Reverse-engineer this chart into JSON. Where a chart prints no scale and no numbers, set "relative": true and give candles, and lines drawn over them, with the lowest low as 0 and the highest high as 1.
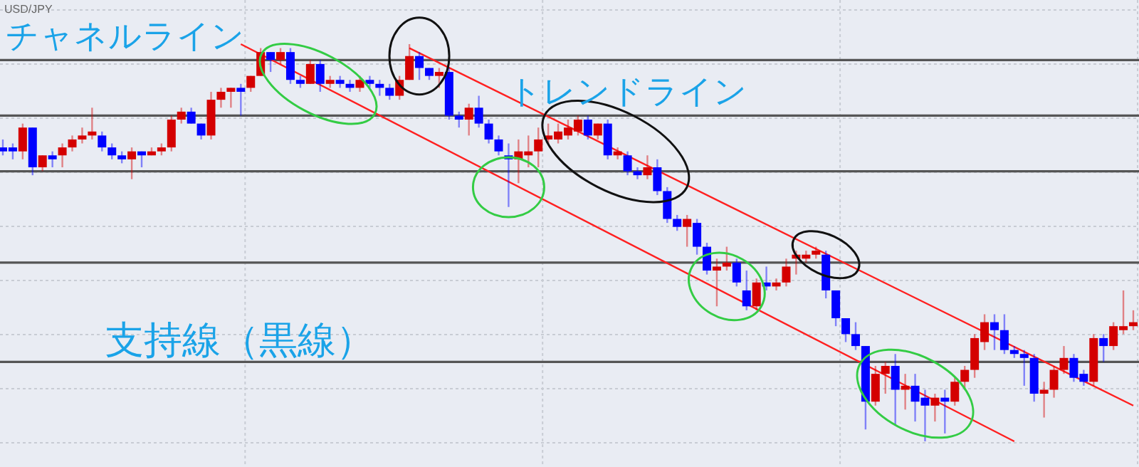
{
  "chart_data": {
    "type": "candlestick",
    "title": "USD/JPY",
    "relative": true,
    "grid": true,
    "annotations": [
      "チャネルライン",
      "トレンドライン",
      "支持線（黒線）"
    ],
    "categories": [
      null,
      null,
      null,
      null,
      null,
      null,
      null,
      null,
      null,
      null,
      null,
      null,
      null,
      null,
      null,
      null,
      null,
      null,
      null,
      null,
      null,
      null,
      null,
      null,
      null,
      null,
      null,
      null,
      null,
      null,
      null,
      null,
      null,
      null,
      null,
      null,
      null,
      null,
      null,
      null,
      null,
      null,
      null,
      null,
      null,
      null,
      null,
      null,
      null,
      null,
      null,
      null,
      null,
      null,
      null,
      null,
      null,
      null,
      null,
      null,
      null,
      null,
      null,
      null,
      null,
      null,
      null,
      null,
      null,
      null,
      null,
      null,
      null,
      null,
      null,
      null,
      null,
      null,
      null,
      null,
      null,
      null,
      null,
      null,
      null,
      null,
      null,
      null,
      null,
      null,
      null,
      null,
      null,
      null,
      null,
      null,
      null,
      null,
      null,
      null,
      null,
      null,
      null,
      null,
      null,
      null,
      null,
      null,
      null,
      null,
      null,
      null,
      null,
      null,
      null
    ],
    "colors": [
      "#0000ff",
      "#0000ff",
      "#d40000",
      "#0000ff",
      "#d40000",
      "#0000ff",
      "#d40000",
      "#d40000",
      "#d40000",
      "#d40000",
      "#0000ff",
      "#0000ff",
      "#0000ff",
      "#d40000",
      "#0000ff",
      "#d40000",
      "#d40000",
      "#d40000",
      "#d40000",
      "#0000ff",
      "#0000ff",
      "#d40000",
      "#d40000",
      "#d40000",
      "#0000ff",
      "#d40000",
      "#d40000",
      "#0000ff",
      "#d40000",
      "#0000ff",
      "#0000ff",
      "#d40000",
      "#0000ff",
      "#d40000",
      "#0000ff",
      "#0000ff",
      "#d40000",
      "#0000ff",
      "#0000ff",
      "#0000ff",
      "#d40000",
      "#d40000",
      "#0000ff",
      "#0000ff",
      "#d40000",
      "#0000ff",
      "#0000ff",
      "#d40000",
      "#0000ff",
      "#0000ff",
      "#0000ff",
      "#0000ff",
      "#d40000",
      "#d40000",
      "#d40000",
      "#d40000",
      "#d40000",
      "#d40000",
      "#d40000",
      "#0000ff",
      "#d40000",
      "#0000ff",
      "#d40000",
      "#0000ff",
      "#0000ff",
      "#d40000",
      "#0000ff",
      "#0000ff",
      "#0000ff",
      "#d40000",
      "#0000ff",
      "#0000ff",
      "#d40000",
      "#d40000",
      "#0000ff",
      "#0000ff",
      "#d40000",
      "#0000ff",
      "#d40000",
      "#d40000",
      "#d40000",
      "#d40000",
      "#d40000",
      "#0000ff",
      "#0000ff",
      "#0000ff",
      "#0000ff",
      "#0000ff",
      "#d40000",
      "#d40000",
      "#0000ff",
      "#d40000",
      "#0000ff",
      "#0000ff",
      "#d40000",
      "#0000ff",
      "#d40000",
      "#d40000",
      "#d40000",
      "#d40000",
      "#0000ff",
      "#0000ff",
      "#0000ff",
      "#0000ff",
      "#0000ff",
      "#d40000",
      "#d40000",
      "#d40000",
      "#0000ff",
      "#0000ff",
      "#d40000",
      "#0000ff",
      "#d40000",
      "#d40000",
      "#d40000"
    ],
    "ohlc": [
      [
        0.74,
        0.76,
        0.72,
        0.73
      ],
      [
        0.74,
        0.75,
        0.71,
        0.73
      ],
      [
        0.73,
        0.8,
        0.71,
        0.79
      ],
      [
        0.79,
        0.79,
        0.67,
        0.69
      ],
      [
        0.69,
        0.72,
        0.68,
        0.72
      ],
      [
        0.72,
        0.73,
        0.69,
        0.71
      ],
      [
        0.72,
        0.75,
        0.69,
        0.74
      ],
      [
        0.74,
        0.77,
        0.73,
        0.76
      ],
      [
        0.76,
        0.79,
        0.75,
        0.77
      ],
      [
        0.77,
        0.84,
        0.76,
        0.78
      ],
      [
        0.77,
        0.78,
        0.73,
        0.74
      ],
      [
        0.74,
        0.75,
        0.71,
        0.72
      ],
      [
        0.72,
        0.73,
        0.7,
        0.71
      ],
      [
        0.71,
        0.74,
        0.66,
        0.73
      ],
      [
        0.73,
        0.73,
        0.69,
        0.72
      ],
      [
        0.72,
        0.74,
        0.72,
        0.73
      ],
      [
        0.73,
        0.75,
        0.72,
        0.74
      ],
      [
        0.74,
        0.82,
        0.73,
        0.81
      ],
      [
        0.81,
        0.84,
        0.8,
        0.83
      ],
      [
        0.83,
        0.84,
        0.8,
        0.8
      ],
      [
        0.8,
        0.8,
        0.76,
        0.77
      ],
      [
        0.77,
        0.88,
        0.76,
        0.86
      ],
      [
        0.86,
        0.89,
        0.84,
        0.88
      ],
      [
        0.88,
        0.89,
        0.84,
        0.89
      ],
      [
        0.89,
        0.9,
        0.82,
        0.88
      ],
      [
        0.89,
        0.92,
        0.88,
        0.92
      ],
      [
        0.92,
        0.99,
        0.92,
        0.98
      ],
      [
        0.98,
        0.98,
        0.93,
        0.96
      ],
      [
        0.96,
        0.99,
        0.95,
        0.98
      ],
      [
        0.98,
        0.99,
        0.9,
        0.91
      ],
      [
        0.91,
        0.92,
        0.89,
        0.9
      ],
      [
        0.9,
        0.96,
        0.9,
        0.95
      ],
      [
        0.95,
        0.96,
        0.88,
        0.9
      ],
      [
        0.9,
        0.92,
        0.89,
        0.91
      ],
      [
        0.91,
        0.92,
        0.89,
        0.9
      ],
      [
        0.9,
        0.91,
        0.88,
        0.89
      ],
      [
        0.89,
        0.92,
        0.88,
        0.91
      ],
      [
        0.91,
        0.92,
        0.89,
        0.9
      ],
      [
        0.9,
        0.91,
        0.87,
        0.89
      ],
      [
        0.89,
        0.9,
        0.86,
        0.87
      ],
      [
        0.87,
        0.92,
        0.86,
        0.91
      ],
      [
        0.91,
        1.0,
        0.91,
        0.97
      ],
      [
        0.97,
        0.98,
        0.91,
        0.94
      ],
      [
        0.94,
        0.94,
        0.91,
        0.92
      ],
      [
        0.92,
        0.94,
        0.89,
        0.93
      ],
      [
        0.93,
        0.94,
        0.81,
        0.82
      ],
      [
        0.82,
        0.83,
        0.79,
        0.81
      ],
      [
        0.81,
        0.85,
        0.77,
        0.84
      ],
      [
        0.84,
        0.87,
        0.79,
        0.8
      ],
      [
        0.8,
        0.81,
        0.75,
        0.76
      ],
      [
        0.76,
        0.77,
        0.72,
        0.73
      ],
      [
        0.72,
        0.75,
        0.59,
        0.71
      ],
      [
        0.71,
        0.76,
        0.65,
        0.73
      ],
      [
        0.72,
        0.77,
        0.69,
        0.73
      ],
      [
        0.73,
        0.79,
        0.69,
        0.76
      ],
      [
        0.76,
        0.8,
        0.75,
        0.77
      ],
      [
        0.76,
        0.8,
        0.75,
        0.78
      ],
      [
        0.77,
        0.81,
        0.76,
        0.79
      ],
      [
        0.78,
        0.82,
        0.77,
        0.81
      ],
      [
        0.81,
        0.82,
        0.76,
        0.77
      ],
      [
        0.77,
        0.8,
        0.76,
        0.8
      ],
      [
        0.8,
        0.81,
        0.71,
        0.72
      ],
      [
        0.72,
        0.74,
        0.71,
        0.73
      ],
      [
        0.72,
        0.73,
        0.67,
        0.68
      ],
      [
        0.68,
        0.69,
        0.66,
        0.67
      ],
      [
        0.67,
        0.72,
        0.66,
        0.69
      ],
      [
        0.69,
        0.71,
        0.62,
        0.63
      ],
      [
        0.63,
        0.64,
        0.55,
        0.56
      ],
      [
        0.56,
        0.57,
        0.53,
        0.54
      ],
      [
        0.54,
        0.57,
        0.49,
        0.56
      ],
      [
        0.55,
        0.56,
        0.47,
        0.49
      ],
      [
        0.49,
        0.5,
        0.42,
        0.43
      ],
      [
        0.43,
        0.46,
        0.34,
        0.44
      ],
      [
        0.44,
        0.49,
        0.43,
        0.45
      ],
      [
        0.45,
        0.46,
        0.39,
        0.4
      ],
      [
        0.38,
        0.43,
        0.33,
        0.34
      ],
      [
        0.34,
        0.41,
        0.33,
        0.4
      ],
      [
        0.4,
        0.44,
        0.38,
        0.39
      ],
      [
        0.39,
        0.41,
        0.38,
        0.4
      ],
      [
        0.4,
        0.46,
        0.39,
        0.44
      ],
      [
        0.46,
        0.48,
        0.42,
        0.47
      ],
      [
        0.46,
        0.48,
        0.45,
        0.47
      ],
      [
        0.47,
        0.49,
        0.46,
        0.48
      ],
      [
        0.47,
        0.48,
        0.36,
        0.38
      ],
      [
        0.38,
        0.38,
        0.29,
        0.31
      ],
      [
        0.31,
        0.31,
        0.25,
        0.27
      ],
      [
        0.27,
        0.3,
        0.23,
        0.24
      ],
      [
        0.24,
        0.24,
        0.03,
        0.1
      ],
      [
        0.1,
        0.19,
        0.09,
        0.17
      ],
      [
        0.17,
        0.2,
        0.12,
        0.19
      ],
      [
        0.19,
        0.22,
        0.04,
        0.13
      ],
      [
        0.13,
        0.17,
        0.08,
        0.14
      ],
      [
        0.14,
        0.17,
        0.05,
        0.1
      ],
      [
        0.11,
        0.13,
        0.0,
        0.09
      ],
      [
        0.09,
        0.12,
        0.05,
        0.11
      ],
      [
        0.11,
        0.13,
        0.02,
        0.1
      ],
      [
        0.1,
        0.16,
        0.09,
        0.15
      ],
      [
        0.15,
        0.19,
        0.13,
        0.18
      ],
      [
        0.18,
        0.27,
        0.16,
        0.26
      ],
      [
        0.25,
        0.32,
        0.23,
        0.3
      ],
      [
        0.3,
        0.32,
        0.23,
        0.28
      ],
      [
        0.28,
        0.32,
        0.22,
        0.23
      ],
      [
        0.23,
        0.24,
        0.21,
        0.22
      ],
      [
        0.22,
        0.23,
        0.14,
        0.21
      ],
      [
        0.21,
        0.22,
        0.1,
        0.12
      ],
      [
        0.12,
        0.15,
        0.06,
        0.13
      ],
      [
        0.13,
        0.19,
        0.11,
        0.18
      ],
      [
        0.18,
        0.24,
        0.17,
        0.21
      ],
      [
        0.21,
        0.22,
        0.15,
        0.16
      ],
      [
        0.17,
        0.18,
        0.14,
        0.15
      ],
      [
        0.15,
        0.27,
        0.14,
        0.26
      ],
      [
        0.26,
        0.27,
        0.2,
        0.24
      ],
      [
        0.24,
        0.3,
        0.23,
        0.29
      ],
      [
        0.28,
        0.38,
        0.27,
        0.29
      ],
      [
        0.29,
        0.33,
        0.28,
        0.3
      ]
    ],
    "series": [
      {
        "type": "line",
        "color": "#ff2020",
        "values": [
          null,
          null,
          null,
          null,
          null,
          null,
          null,
          null,
          null,
          null,
          null,
          null,
          null,
          null,
          null,
          null,
          null,
          null,
          null,
          null,
          null,
          null,
          null,
          null,
          null,
          null,
          null,
          null,
          null,
          null,
          null,
          null,
          null,
          null,
          null,
          null,
          null,
          null,
          null,
          null,
          null,
          0.99,
          null,
          null,
          null,
          null,
          null,
          null,
          null,
          null,
          null,
          null,
          null,
          null,
          null,
          null,
          null,
          null,
          null,
          null,
          null,
          null,
          null,
          null,
          null,
          null,
          null,
          null,
          null,
          null,
          null,
          null,
          null,
          null,
          null,
          null,
          null,
          null,
          null,
          null,
          null,
          null,
          null,
          null,
          null,
          null,
          null,
          null,
          null,
          null,
          null,
          null,
          null,
          null,
          null,
          null,
          null,
          null,
          null,
          null,
          null,
          null,
          null,
          null,
          null,
          null,
          null,
          null,
          null,
          null,
          null,
          null,
          null,
          null,
          0.09
        ]
      },
      {
        "type": "line",
        "color": "#ff2020",
        "values": [
          null,
          null,
          null,
          null,
          null,
          null,
          null,
          null,
          null,
          null,
          null,
          null,
          null,
          null,
          null,
          null,
          null,
          null,
          null,
          null,
          null,
          null,
          null,
          null,
          1.0,
          null,
          null,
          null,
          null,
          null,
          null,
          null,
          null,
          null,
          null,
          null,
          null,
          null,
          null,
          null,
          null,
          null,
          null,
          null,
          null,
          null,
          null,
          null,
          null,
          null,
          null,
          null,
          null,
          null,
          null,
          null,
          null,
          null,
          null,
          null,
          null,
          null,
          null,
          null,
          null,
          null,
          null,
          null,
          null,
          null,
          null,
          null,
          null,
          null,
          null,
          null,
          null,
          null,
          null,
          null,
          null,
          null,
          null,
          null,
          null,
          null,
          null,
          null,
          null,
          null,
          null,
          null,
          null,
          null,
          null,
          null,
          null,
          null,
          null,
          null,
          null,
          null,
          0.0,
          null,
          null,
          null,
          null,
          null,
          null,
          null,
          null,
          null,
          null,
          null,
          null
        ]
      }
    ],
    "ref_lines": [
      {
        "axis": "y",
        "value": 0.96,
        "color": "#555555"
      },
      {
        "axis": "y",
        "value": 0.82,
        "color": "#555555"
      },
      {
        "axis": "y",
        "value": 0.68,
        "color": "#555555"
      },
      {
        "axis": "y",
        "value": 0.45,
        "color": "#555555"
      },
      {
        "axis": "y",
        "value": 0.2,
        "color": "#555555"
      }
    ]
  }
}
